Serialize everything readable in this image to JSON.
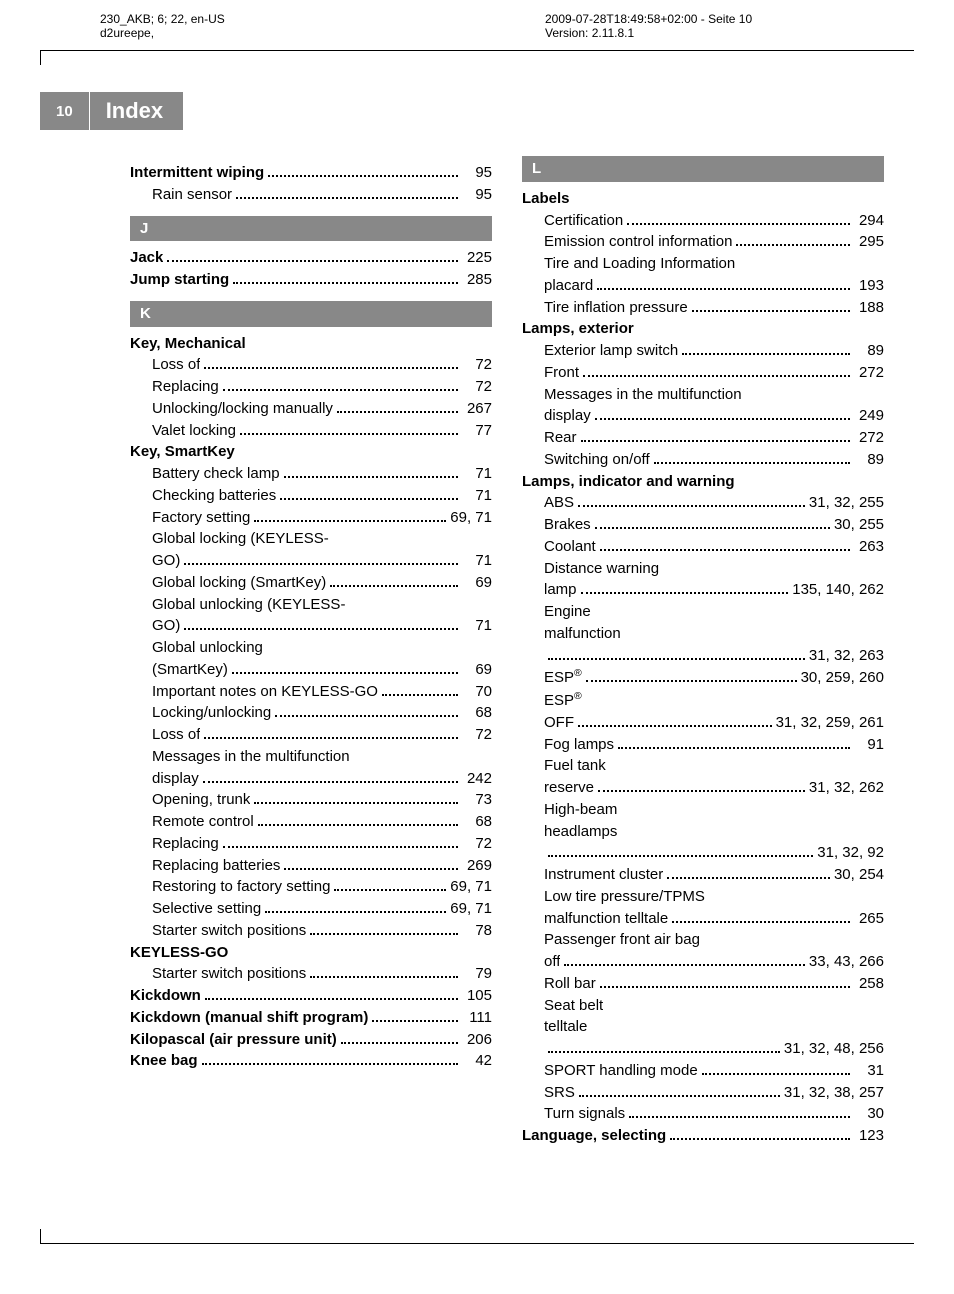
{
  "meta": {
    "left_line1": "230_AKB; 6; 22, en-US",
    "left_line2": "d2ureepe,",
    "right_line1": "2009-07-28T18:49:58+02:00 - Seite 10",
    "right_line2": "Version: 2.11.8.1"
  },
  "header": {
    "pageNum": "10",
    "title": "Index"
  },
  "leftCol": {
    "pre": [
      {
        "label": "Intermittent wiping",
        "page": "95",
        "bold": true
      },
      {
        "label": "Rain sensor",
        "page": "95",
        "sub": true
      }
    ],
    "J": {
      "letter": "J",
      "entries": [
        {
          "label": "Jack",
          "page": "225",
          "bold": true
        },
        {
          "label": "Jump starting",
          "page": "285",
          "bold": true
        }
      ]
    },
    "K": {
      "letter": "K",
      "entries": [
        {
          "label": "Key, Mechanical",
          "header": true
        },
        {
          "label": "Loss of",
          "page": "72",
          "sub": true
        },
        {
          "label": "Replacing",
          "page": "72",
          "sub": true
        },
        {
          "label": "Unlocking/locking manually",
          "page": "267",
          "sub": true
        },
        {
          "label": "Valet locking",
          "page": "77",
          "sub": true
        },
        {
          "label": "Key, SmartKey",
          "header": true
        },
        {
          "label": "Battery check lamp",
          "page": "71",
          "sub": true
        },
        {
          "label": "Checking batteries",
          "page": "71",
          "sub": true
        },
        {
          "label": "Factory setting",
          "page": "69, 71",
          "sub": true
        },
        {
          "label": "Global locking (KEYLESS-",
          "sub": true,
          "nowrap": true
        },
        {
          "label": "GO)",
          "page": "71",
          "sub": true
        },
        {
          "label": "Global locking (SmartKey)",
          "page": "69",
          "sub": true
        },
        {
          "label": "Global unlocking (KEYLESS-",
          "sub": true,
          "nowrap": true
        },
        {
          "label": "GO)",
          "page": "71",
          "sub": true
        },
        {
          "label": "Global unlocking",
          "sub": true,
          "nowrap": true
        },
        {
          "label": "(SmartKey)",
          "page": "69",
          "sub": true
        },
        {
          "label": "Important notes on KEYLESS-GO",
          "page": "70",
          "sub": true
        },
        {
          "label": "Locking/unlocking",
          "page": "68",
          "sub": true
        },
        {
          "label": "Loss of",
          "page": "72",
          "sub": true
        },
        {
          "label": "Messages in the multifunction",
          "sub": true,
          "nowrap": true
        },
        {
          "label": "display",
          "page": "242",
          "sub": true
        },
        {
          "label": "Opening, trunk",
          "page": "73",
          "sub": true
        },
        {
          "label": "Remote control",
          "page": "68",
          "sub": true
        },
        {
          "label": "Replacing",
          "page": "72",
          "sub": true
        },
        {
          "label": "Replacing batteries",
          "page": "269",
          "sub": true
        },
        {
          "label": "Restoring to factory setting",
          "page": "69, 71",
          "sub": true
        },
        {
          "label": "Selective setting",
          "page": "69, 71",
          "sub": true
        },
        {
          "label": "Starter switch positions",
          "page": "78",
          "sub": true
        },
        {
          "label": "KEYLESS-GO",
          "header": true
        },
        {
          "label": "Starter switch positions",
          "page": "79",
          "sub": true
        },
        {
          "label": "Kickdown",
          "page": "105",
          "bold": true
        },
        {
          "label": "Kickdown (manual shift program)",
          "page": "111",
          "bold": true
        },
        {
          "label": "Kilopascal (air pressure unit)",
          "page": "206",
          "bold": true
        },
        {
          "label": "Knee bag",
          "page": "42",
          "bold": true
        }
      ]
    }
  },
  "rightCol": {
    "L": {
      "letter": "L",
      "entries": [
        {
          "label": "Labels",
          "header": true
        },
        {
          "label": "Certification",
          "page": "294",
          "sub": true
        },
        {
          "label": "Emission control information",
          "page": "295",
          "sub": true
        },
        {
          "label": "Tire and Loading Information",
          "sub": true,
          "nowrap": true
        },
        {
          "label": "placard",
          "page": "193",
          "sub": true
        },
        {
          "label": "Tire inflation pressure",
          "page": "188",
          "sub": true
        },
        {
          "label": "Lamps, exterior",
          "header": true
        },
        {
          "label": "Exterior lamp switch",
          "page": "89",
          "sub": true
        },
        {
          "label": "Front",
          "page": "272",
          "sub": true
        },
        {
          "label": "Messages in the multifunction",
          "sub": true,
          "nowrap": true
        },
        {
          "label": "display",
          "page": "249",
          "sub": true
        },
        {
          "label": "Rear",
          "page": "272",
          "sub": true
        },
        {
          "label": "Switching on/off",
          "page": "89",
          "sub": true
        },
        {
          "label": "Lamps, indicator and warning",
          "header": true
        },
        {
          "label": "ABS",
          "page": "31, 32, 255",
          "sub": true
        },
        {
          "label": "Brakes",
          "page": "30, 255",
          "sub": true
        },
        {
          "label": "Coolant",
          "page": "263",
          "sub": true
        },
        {
          "label": "Distance warning",
          "sub": true,
          "nowrap": true
        },
        {
          "label": "lamp",
          "page": "135, 140, 262",
          "sub": true
        },
        {
          "label": "Engine",
          "sub": true,
          "nowrap": true
        },
        {
          "label": "malfunction",
          "sub": true,
          "nowrap": true
        },
        {
          "label": "",
          "page": "31, 32, 263",
          "sub": true,
          "emptyLabel": true
        },
        {
          "label": "ESP®",
          "page": "30, 259, 260",
          "sub": true,
          "sup": true
        },
        {
          "label": "ESP®",
          "sub": true,
          "nowrap": true,
          "sup": true
        },
        {
          "label": "OFF",
          "page": "31, 32, 259, 261",
          "sub": true
        },
        {
          "label": "Fog lamps",
          "page": "91",
          "sub": true
        },
        {
          "label": "Fuel tank",
          "sub": true,
          "nowrap": true
        },
        {
          "label": "reserve",
          "page": "31, 32, 262",
          "sub": true
        },
        {
          "label": "High-beam",
          "sub": true,
          "nowrap": true
        },
        {
          "label": "headlamps",
          "sub": true,
          "nowrap": true
        },
        {
          "label": "",
          "page": "31, 32, 92",
          "sub": true,
          "emptyLabel": true
        },
        {
          "label": "Instrument cluster",
          "page": "30, 254",
          "sub": true
        },
        {
          "label": "Low tire pressure/TPMS",
          "sub": true,
          "nowrap": true
        },
        {
          "label": "malfunction telltale",
          "page": "265",
          "sub": true
        },
        {
          "label": "Passenger front air bag",
          "sub": true,
          "nowrap": true
        },
        {
          "label": "off",
          "page": "33, 43, 266",
          "sub": true
        },
        {
          "label": "Roll bar",
          "page": "258",
          "sub": true
        },
        {
          "label": "Seat belt",
          "sub": true,
          "nowrap": true
        },
        {
          "label": "telltale",
          "sub": true,
          "nowrap": true
        },
        {
          "label": "",
          "page": "31, 32, 48, 256",
          "sub": true,
          "emptyLabel": true
        },
        {
          "label": "SPORT handling mode",
          "page": "31",
          "sub": true
        },
        {
          "label": "SRS",
          "page": "31, 32, 38, 257",
          "sub": true
        },
        {
          "label": "Turn signals",
          "page": "30",
          "sub": true
        },
        {
          "label": "Language, selecting",
          "page": "123",
          "bold": true
        }
      ]
    }
  }
}
